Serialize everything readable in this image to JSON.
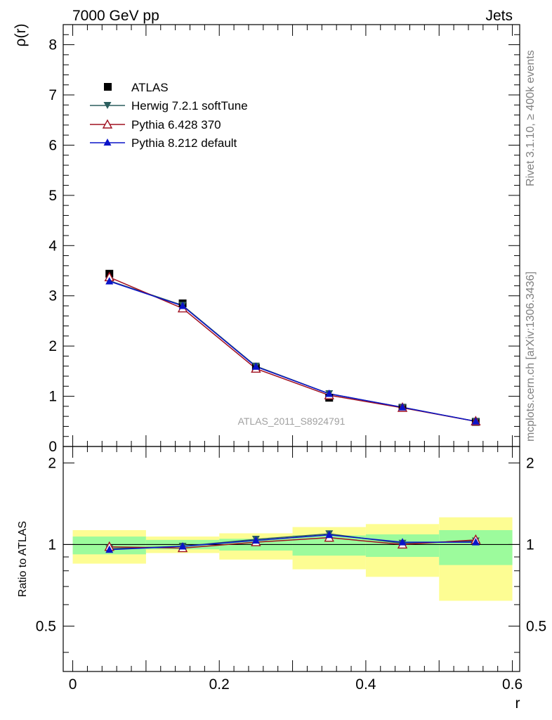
{
  "header": {
    "energy_label": "7000 GeV pp",
    "category_label": "Jets"
  },
  "side_labels": {
    "rivet": "Rivet 3.1.10, ≥ 400k events",
    "mcplots": "mcplots.cern.ch [arXiv:1306.3436]"
  },
  "analysis_id": "ATLAS_2011_S8924791",
  "chart_data": [
    {
      "type": "scatter",
      "panel": "main",
      "xlabel": "",
      "ylabel": "ρ(r)",
      "xlim": [
        -0.013,
        0.61
      ],
      "ylim": [
        0,
        8.4
      ],
      "yticks": [
        "0",
        "1",
        "2",
        "3",
        "4",
        "5",
        "6",
        "7",
        "8"
      ],
      "legend_position": "top-left",
      "x": [
        0.05,
        0.15,
        0.25,
        0.35,
        0.45,
        0.55
      ],
      "series": [
        {
          "name": "ATLAS",
          "values": [
            3.44,
            2.85,
            1.57,
            0.97,
            0.77,
            0.49
          ],
          "color": "#000000",
          "marker": "square"
        },
        {
          "name": "Herwig 7.2.1 softTune",
          "values": [
            3.3,
            2.81,
            1.6,
            1.05,
            0.78,
            0.5
          ],
          "color": "#2c5f5f",
          "marker": "triangle-down"
        },
        {
          "name": "Pythia 6.428 370",
          "values": [
            3.37,
            2.75,
            1.55,
            1.02,
            0.77,
            0.5
          ],
          "color": "#a01020",
          "marker": "triangle-up-open"
        },
        {
          "name": "Pythia 8.212 default",
          "values": [
            3.29,
            2.8,
            1.59,
            1.05,
            0.78,
            0.5
          ],
          "color": "#0a14c8",
          "marker": "triangle-up"
        }
      ]
    },
    {
      "type": "line",
      "panel": "ratio",
      "xlabel": "r",
      "ylabel": "Ratio to ATLAS",
      "xlim": [
        -0.013,
        0.61
      ],
      "ylim": [
        0.34,
        2.3
      ],
      "xticks": [
        "0",
        "0.2",
        "0.4",
        "0.6"
      ],
      "yticks": [
        "0.5",
        "1",
        "2"
      ],
      "x": [
        0.05,
        0.15,
        0.25,
        0.35,
        0.45,
        0.55
      ],
      "bins": [
        [
          0.0,
          0.1
        ],
        [
          0.1,
          0.2
        ],
        [
          0.2,
          0.3
        ],
        [
          0.3,
          0.4
        ],
        [
          0.4,
          0.5
        ],
        [
          0.5,
          0.6
        ]
      ],
      "bands": {
        "stat": {
          "color": "#9cfb9c",
          "low": [
            0.92,
            0.96,
            0.95,
            0.91,
            0.9,
            0.84
          ],
          "high": [
            1.07,
            1.04,
            1.05,
            1.08,
            1.09,
            1.13
          ]
        },
        "total": {
          "color": "#fdfd93",
          "low": [
            0.85,
            0.93,
            0.88,
            0.81,
            0.76,
            0.62
          ],
          "high": [
            1.13,
            1.07,
            1.1,
            1.16,
            1.19,
            1.26
          ]
        }
      },
      "series": [
        {
          "name": "Herwig 7.2.1 softTune",
          "values": [
            0.965,
            0.985,
            1.045,
            1.095,
            1.01,
            1.03
          ],
          "color": "#2c5f5f",
          "marker": "triangle-down"
        },
        {
          "name": "Pythia 6.428 370",
          "values": [
            0.98,
            0.97,
            1.02,
            1.06,
            1.0,
            1.04
          ],
          "color": "#a01020",
          "marker": "triangle-up-open"
        },
        {
          "name": "Pythia 8.212 default",
          "values": [
            0.957,
            0.985,
            1.035,
            1.085,
            1.02,
            1.02
          ],
          "color": "#0a14c8",
          "marker": "triangle-up"
        }
      ]
    }
  ]
}
